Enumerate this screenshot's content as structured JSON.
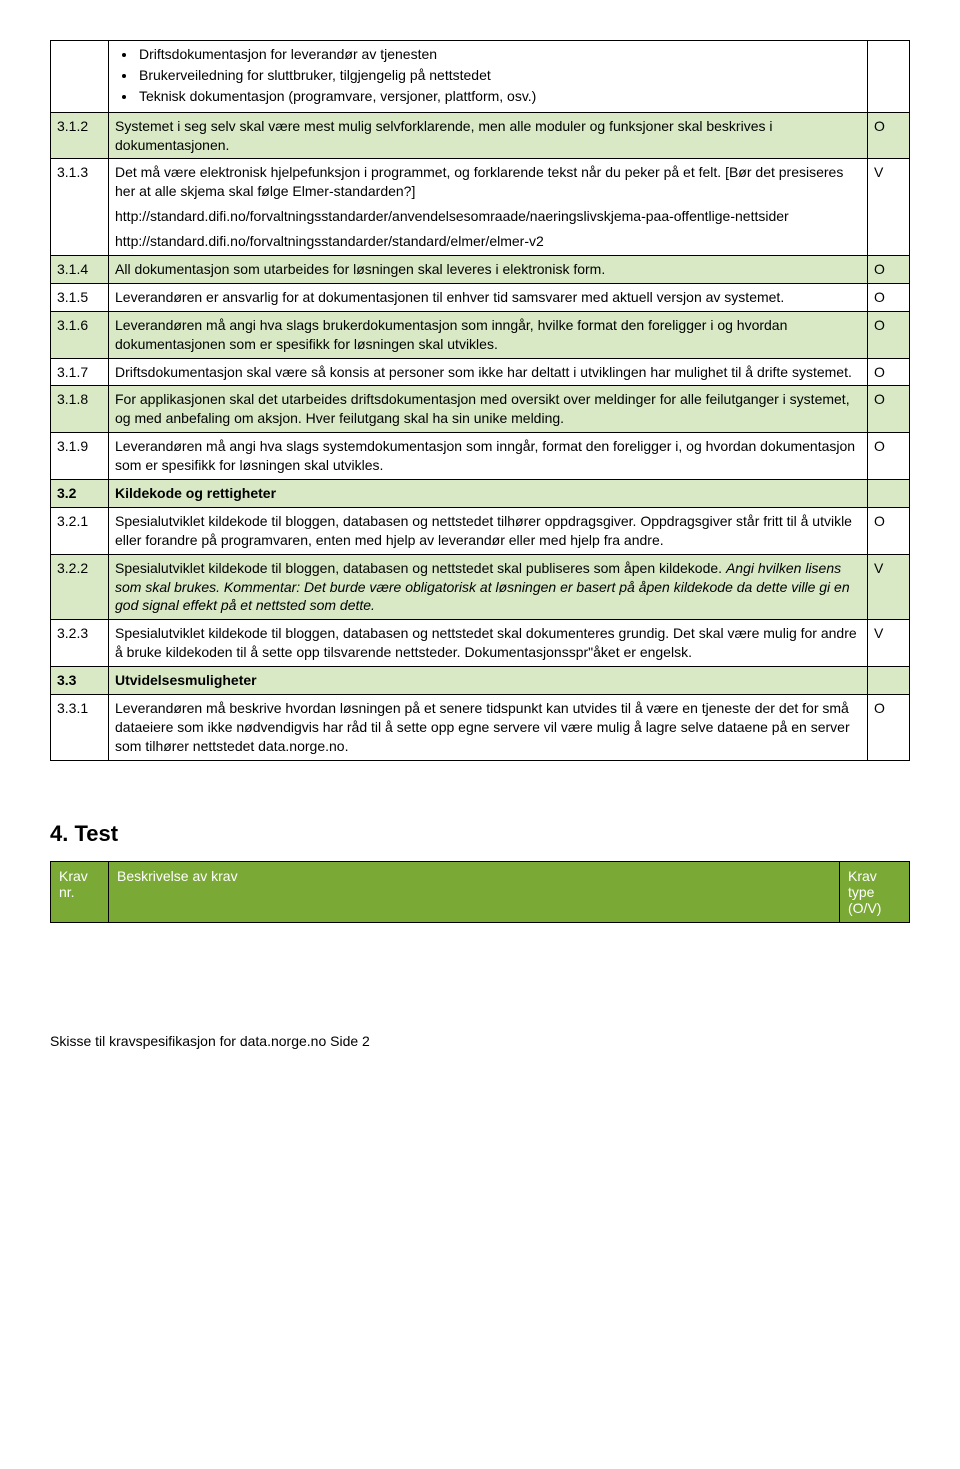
{
  "colors": {
    "row_white": "#ffffff",
    "row_green": "#d9e9c6",
    "header_bg": "#7aa935",
    "header_fg": "#ffffff",
    "border": "#000000"
  },
  "top_bullets": [
    "Driftsdokumentasjon for leverandør av tjenesten",
    "Brukerveiledning for sluttbruker, tilgjengelig på nettstedet",
    "Teknisk dokumentasjon (programvare, versjoner, plattform, osv.)"
  ],
  "rows": [
    {
      "num": "3.1.2",
      "bg": "bg-green",
      "ov": "O",
      "paras": [
        "Systemet i seg selv skal være mest mulig selvforklarende, men alle moduler og funksjoner skal beskrives i dokumentasjonen."
      ]
    },
    {
      "num": "3.1.3",
      "bg": "bg-white",
      "ov": "V",
      "paras": [
        "Det må være elektronisk hjelpefunksjon i programmet, og forklarende tekst når du peker på et felt. [Bør det presiseres her at alle skjema skal følge Elmer-standarden?]",
        "http://standard.difi.no/forvaltningsstandarder/anvendelsesomraade/naeringslivskjema-paa-offentlige-nettsider",
        "http://standard.difi.no/forvaltningsstandarder/standard/elmer/elmer-v2"
      ]
    },
    {
      "num": "3.1.4",
      "bg": "bg-green",
      "ov": "O",
      "paras": [
        "All dokumentasjon som utarbeides for løsningen skal leveres i elektronisk form."
      ]
    },
    {
      "num": "3.1.5",
      "bg": "bg-white",
      "ov": "O",
      "paras": [
        "Leverandøren er ansvarlig for at dokumentasjonen til enhver tid samsvarer med aktuell versjon av systemet."
      ]
    },
    {
      "num": "3.1.6",
      "bg": "bg-green",
      "ov": "O",
      "paras": [
        "Leverandøren må angi hva slags brukerdokumentasjon som inngår, hvilke format den foreligger i og hvordan dokumentasjonen som er spesifikk for løsningen skal utvikles."
      ]
    },
    {
      "num": "3.1.7",
      "bg": "bg-white",
      "ov": "O",
      "paras": [
        "Driftsdokumentasjon skal være så konsis at personer som ikke har deltatt i utviklingen har mulighet til å drifte systemet."
      ]
    },
    {
      "num": "3.1.8",
      "bg": "bg-green",
      "ov": "O",
      "paras": [
        "For applikasjonen skal det utarbeides driftsdokumentasjon med oversikt over meldinger for alle feilutganger i systemet, og med anbefaling om aksjon. Hver feilutgang skal ha sin unike melding."
      ]
    },
    {
      "num": "3.1.9",
      "bg": "bg-white",
      "ov": "O",
      "paras": [
        "Leverandøren må angi hva slags systemdokumentasjon som inngår, format den foreligger i, og hvordan dokumentasjon som er spesifikk for løsningen skal utvikles."
      ]
    },
    {
      "num": "3.2",
      "bg": "bg-green",
      "ov": "",
      "bold": true,
      "paras": [
        "Kildekode og rettigheter"
      ]
    },
    {
      "num": "3.2.1",
      "bg": "bg-white",
      "ov": "O",
      "paras": [
        "Spesialutviklet kildekode til bloggen, databasen og nettstedet tilhører oppdragsgiver. Oppdragsgiver står fritt til å utvikle eller forandre på programvaren, enten med hjelp av leverandør eller med hjelp fra andre."
      ]
    },
    {
      "num": "3.2.2",
      "bg": "bg-green",
      "ov": "V",
      "mixed": true,
      "paras": [
        {
          "t": "Spesialutviklet kildekode til bloggen, databasen og nettstedet skal publiseres som åpen kildekode. ",
          "i": false
        },
        {
          "t": "Angi hvilken lisens som skal brukes. Kommentar: Det burde være obligatorisk at løsningen er basert på åpen kildekode da dette ville gi en god signal effekt på et nettsted som dette.",
          "i": true
        }
      ]
    },
    {
      "num": "3.2.3",
      "bg": "bg-white",
      "ov": "V",
      "paras": [
        "Spesialutviklet kildekode til bloggen, databasen og nettstedet skal dokumenteres grundig. Det skal være mulig for andre å bruke kildekoden til å sette opp tilsvarende nettsteder. Dokumentasjonsspr\"åket er engelsk."
      ]
    },
    {
      "num": "3.3",
      "bg": "bg-green",
      "ov": "",
      "bold": true,
      "paras": [
        "Utvidelsesmuligheter"
      ]
    },
    {
      "num": "3.3.1",
      "bg": "bg-white",
      "ov": "O",
      "paras": [
        "Leverandøren må beskrive hvordan løsningen på et senere tidspunkt kan utvides til å være en tjeneste der det for små dataeiere som ikke nødvendigvis har råd til å sette opp egne servere vil være mulig å lagre selve dataene på en server som tilhører nettstedet data.norge.no."
      ]
    }
  ],
  "section4": {
    "title": "4. Test",
    "header": {
      "c1": "Krav nr.",
      "c2": "Beskrivelse av krav",
      "c3": "Krav type (O/V)"
    }
  },
  "footer": "Skisse til kravspesifikasjon for data.norge.no Side 2"
}
